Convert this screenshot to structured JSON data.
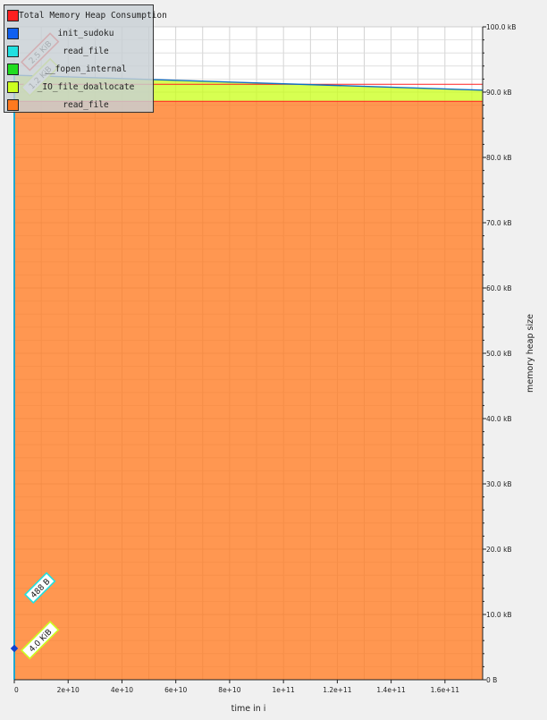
{
  "chart_data": {
    "type": "area",
    "xlabel": "time in i",
    "ylabel": "memory heap size",
    "x_ticks": [
      "0",
      "2e+10",
      "4e+10",
      "6e+10",
      "8e+10",
      "1e+11",
      "1.2e+11",
      "1.4e+11",
      "1.6e+11"
    ],
    "x_tick_values": [
      0,
      20000000000,
      40000000000,
      60000000000,
      80000000000,
      100000000000,
      120000000000,
      140000000000,
      160000000000
    ],
    "y_ticks": [
      "0 B",
      "10.0 kB",
      "20.0 kB",
      "30.0 kB",
      "40.0 kB",
      "50.0 kB",
      "60.0 kB",
      "70.0 kB",
      "80.0 kB",
      "90.0 kB",
      "100.0 kB"
    ],
    "y_tick_values": [
      0,
      10,
      20,
      30,
      40,
      50,
      60,
      70,
      80,
      90,
      100
    ],
    "xlim": [
      0,
      174000000000
    ],
    "ylim": [
      0,
      100
    ],
    "y_unit": "kB",
    "grid": true,
    "legend_position": "top-left",
    "series": [
      {
        "name": "Total Memory Heap Consumption",
        "color": "#ff2020",
        "x": [
          0,
          174000000000
        ],
        "values": [
          91.2,
          91.2
        ]
      },
      {
        "name": "init_sudoku",
        "color": "#1060f0",
        "x": [
          0,
          174000000000
        ],
        "values": [
          0,
          0
        ]
      },
      {
        "name": "read_file",
        "color": "#20e0e0",
        "x": [
          0,
          174000000000
        ],
        "values": [
          0,
          0
        ]
      },
      {
        "name": "__fopen_internal",
        "color": "#20dd20",
        "x": [
          0,
          174000000000
        ],
        "values": [
          0,
          0
        ]
      },
      {
        "name": "_IO_file_doallocate",
        "color": "#ccff20",
        "x": [
          0,
          174000000000
        ],
        "values": [
          4.0,
          1.7
        ]
      },
      {
        "name": "read_file",
        "color": "#ff7a20",
        "x": [
          0,
          174000000000
        ],
        "values": [
          88.6,
          88.6
        ]
      }
    ],
    "annotations": [
      {
        "text": "2.5 KiB",
        "color": "#ff2020",
        "x": 5000000000,
        "y": 95.3
      },
      {
        "text": "1.2 KiB",
        "color": "#ccff20",
        "x": 5000000000,
        "y": 91.4
      },
      {
        "text": "488 B",
        "color": "#20e0e0",
        "x": 5000000000,
        "y": 13.2
      },
      {
        "text": "4.0 KiB",
        "color": "#ccff20",
        "x": 5000000000,
        "y": 5.2
      }
    ]
  }
}
